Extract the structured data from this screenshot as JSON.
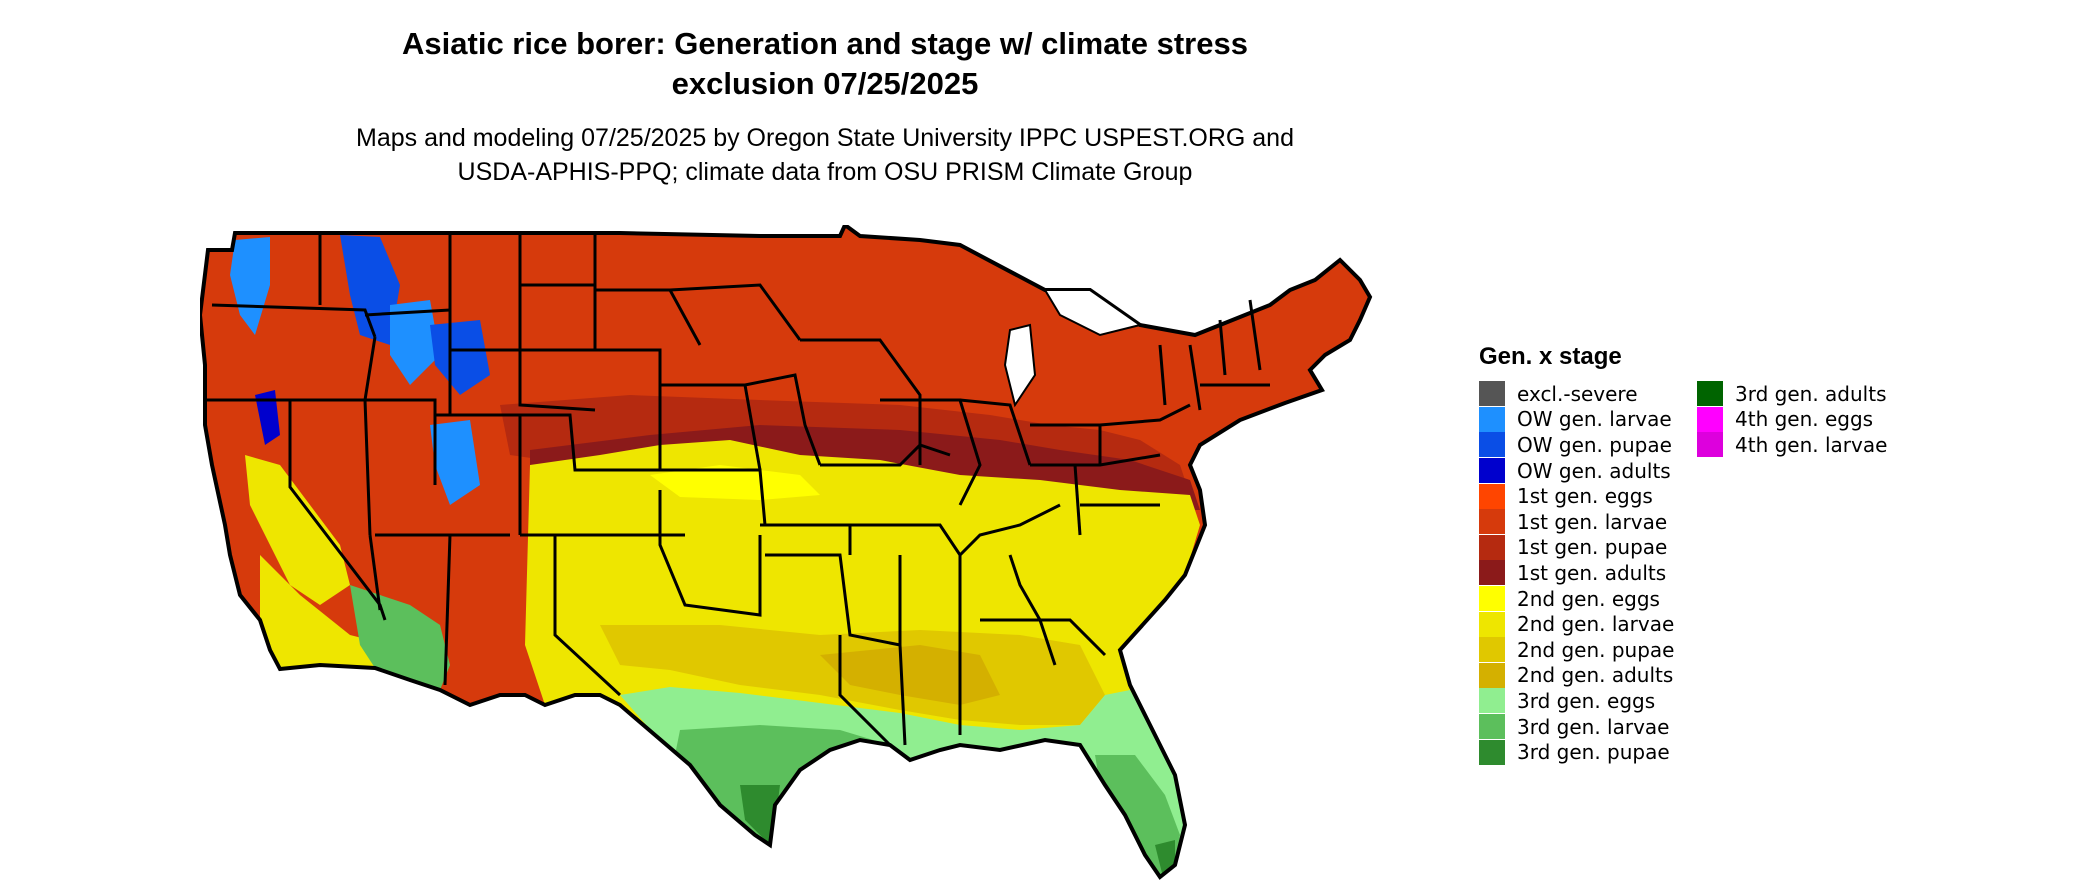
{
  "title": {
    "line1": "Asiatic rice borer: Generation and stage w/ climate stress",
    "line2": "exclusion 07/25/2025"
  },
  "subtitle": {
    "line1": "Maps and modeling 07/25/2025 by Oregon State University IPPC USPEST.ORG and",
    "line2": "USDA-APHIS-PPQ; climate data from OSU PRISM Climate Group"
  },
  "legend": {
    "title": "Gen. x stage",
    "items": [
      {
        "label": "excl.-severe",
        "color": "#555555"
      },
      {
        "label": "OW gen. larvae",
        "color": "#1e90ff"
      },
      {
        "label": "OW gen. pupae",
        "color": "#0a4ee6"
      },
      {
        "label": "OW gen. adults",
        "color": "#0000cd"
      },
      {
        "label": "1st gen. eggs",
        "color": "#ff4500"
      },
      {
        "label": "1st gen. larvae",
        "color": "#d63a0c"
      },
      {
        "label": "1st gen. pupae",
        "color": "#b52a10"
      },
      {
        "label": "1st gen. adults",
        "color": "#8b1a1a"
      },
      {
        "label": "2nd gen. eggs",
        "color": "#ffff00"
      },
      {
        "label": "2nd gen. larvae",
        "color": "#eee600"
      },
      {
        "label": "2nd gen. pupae",
        "color": "#e0c800"
      },
      {
        "label": "2nd gen. adults",
        "color": "#d4b000"
      },
      {
        "label": "3rd gen. eggs",
        "color": "#90ee90"
      },
      {
        "label": "3rd gen. larvae",
        "color": "#5cbf5c"
      },
      {
        "label": "3rd gen. pupae",
        "color": "#2e8b2e"
      },
      {
        "label": "3rd gen. adults",
        "color": "#006400"
      },
      {
        "label": "4th gen. eggs",
        "color": "#ff00ff"
      },
      {
        "label": "4th gen. larvae",
        "color": "#dd00dd"
      }
    ]
  }
}
